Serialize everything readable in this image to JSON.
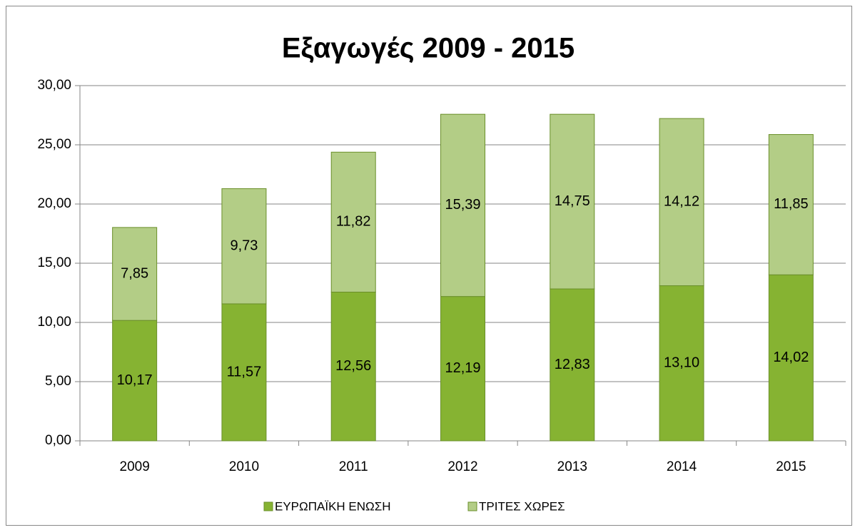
{
  "chart_data": {
    "type": "stacked_bar",
    "title": "Εξαγωγές 2009 - 2015",
    "categories": [
      "2009",
      "2010",
      "2011",
      "2012",
      "2013",
      "2014",
      "2015"
    ],
    "series": [
      {
        "name": "ΕΥΡΩΠΑΪΚΗ ΕΝΩΣΗ",
        "color": "#86b332",
        "values": [
          10.17,
          11.57,
          12.56,
          12.19,
          12.83,
          13.1,
          14.02
        ],
        "value_labels": [
          "10,17",
          "11,57",
          "12,56",
          "12,19",
          "12,83",
          "13,10",
          "14,02"
        ]
      },
      {
        "name": "ΤΡΙΤΕΣ ΧΩΡΕΣ",
        "color": "#b3cd86",
        "values": [
          7.85,
          9.73,
          11.82,
          15.39,
          14.75,
          14.12,
          11.85
        ],
        "value_labels": [
          "7,85",
          "9,73",
          "11,82",
          "15,39",
          "14,75",
          "14,12",
          "11,85"
        ]
      }
    ],
    "ylim": [
      0,
      30
    ],
    "yticks": [
      {
        "value": 0,
        "label": "0,00"
      },
      {
        "value": 5,
        "label": "5,00"
      },
      {
        "value": 10,
        "label": "10,00"
      },
      {
        "value": 15,
        "label": "15,00"
      },
      {
        "value": 20,
        "label": "20,00"
      },
      {
        "value": 25,
        "label": "25,00"
      },
      {
        "value": 30,
        "label": "30,00"
      }
    ],
    "grid": true,
    "legend": "bottom"
  }
}
